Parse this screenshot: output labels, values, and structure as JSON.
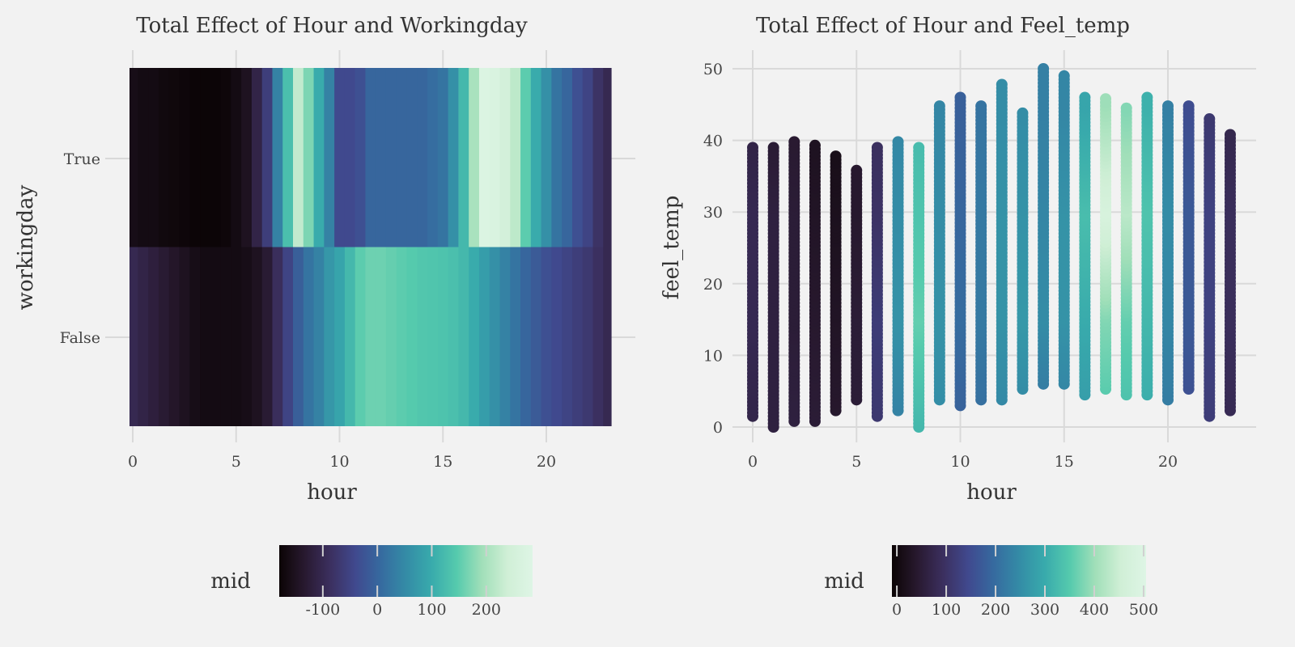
{
  "chart_data": [
    {
      "type": "heatmap",
      "title": "Total Effect of Hour and Workingday",
      "xlabel": "hour",
      "ylabel": "workingday",
      "xticks": [
        0,
        5,
        10,
        15,
        20
      ],
      "yticks": [
        "True",
        "False"
      ],
      "xlim": [
        -0.15,
        23.15
      ],
      "colormap": "mako",
      "grid": true,
      "hours": [
        0,
        0.5,
        1,
        1.5,
        2,
        2.5,
        3,
        3.5,
        4,
        4.5,
        5,
        5.5,
        6,
        6.5,
        7,
        7.5,
        8,
        8.5,
        9,
        9.5,
        10,
        10.5,
        11,
        11.5,
        12,
        12.5,
        13,
        13.5,
        14,
        14.5,
        15,
        15.5,
        16,
        16.5,
        17,
        17.5,
        18,
        18.5,
        19,
        19.5,
        20,
        20.5,
        21,
        21.5,
        22,
        22.5,
        23
      ],
      "rows": [
        {
          "label": "True",
          "values": [
            -160,
            -165,
            -165,
            -170,
            -172,
            -175,
            -178,
            -178,
            -178,
            -175,
            -165,
            -150,
            -110,
            -60,
            40,
            130,
            225,
            170,
            100,
            40,
            -40,
            -40,
            -30,
            0,
            0,
            0,
            0,
            0,
            0,
            10,
            20,
            60,
            120,
            200,
            275,
            270,
            250,
            220,
            150,
            100,
            60,
            20,
            0,
            -30,
            -50,
            -80,
            -100
          ]
        },
        {
          "label": "False",
          "values": [
            -100,
            -110,
            -120,
            -130,
            -140,
            -150,
            -160,
            -165,
            -165,
            -165,
            -165,
            -160,
            -150,
            -130,
            -90,
            -50,
            -10,
            20,
            40,
            70,
            90,
            120,
            150,
            160,
            160,
            155,
            150,
            145,
            140,
            138,
            135,
            130,
            120,
            100,
            80,
            60,
            40,
            20,
            0,
            -15,
            -30,
            -40,
            -50,
            -60,
            -70,
            -85,
            -100
          ]
        }
      ],
      "colorbar": {
        "label": "mid",
        "range": [
          -180,
          285
        ],
        "ticks": [
          -100,
          0,
          100,
          200
        ]
      }
    },
    {
      "type": "scatter",
      "title": "Total Effect of Hour and Feel_temp",
      "xlabel": "hour",
      "ylabel": "feel_temp",
      "xticks": [
        0,
        5,
        10,
        15,
        20
      ],
      "yticks": [
        0,
        10,
        20,
        30,
        40,
        50
      ],
      "xlim": [
        -1,
        24
      ],
      "ylim": [
        -2.5,
        52.5
      ],
      "colormap": "mako",
      "grid": true,
      "mid_sample_temps": [
        0,
        15,
        30,
        45
      ],
      "columns": [
        {
          "hour": 0,
          "min": 1.5,
          "max": 39.4,
          "mid": [
            70,
            80,
            80,
            60
          ]
        },
        {
          "hour": 1,
          "min": 0,
          "max": 39.4,
          "mid": [
            60,
            60,
            60,
            40
          ]
        },
        {
          "hour": 2,
          "min": 0.8,
          "max": 40.2,
          "mid": [
            60,
            50,
            50,
            40
          ]
        },
        {
          "hour": 3,
          "min": 0.8,
          "max": 39.4,
          "mid": [
            50,
            40,
            30,
            20
          ]
        },
        {
          "hour": 4,
          "min": 2.3,
          "max": 38,
          "mid": [
            40,
            30,
            20,
            10
          ]
        },
        {
          "hour": 5,
          "min": 3.8,
          "max": 35.8,
          "mid": [
            50,
            50,
            40,
            40
          ]
        },
        {
          "hour": 6,
          "min": 1.5,
          "max": 39.4,
          "mid": [
            110,
            120,
            100,
            90
          ]
        },
        {
          "hour": 7,
          "min": 2.3,
          "max": 40.2,
          "mid": [
            230,
            260,
            250,
            240
          ]
        },
        {
          "hour": 8,
          "min": 0,
          "max": 39.4,
          "mid": [
            320,
            360,
            340,
            320
          ]
        },
        {
          "hour": 9,
          "min": 3.8,
          "max": 44.8,
          "mid": [
            250,
            260,
            250,
            240
          ]
        },
        {
          "hour": 10,
          "min": 3,
          "max": 46.2,
          "mid": [
            180,
            200,
            190,
            180
          ]
        },
        {
          "hour": 11,
          "min": 3.8,
          "max": 44.8,
          "mid": [
            200,
            220,
            220,
            210
          ]
        },
        {
          "hour": 12,
          "min": 3.8,
          "max": 47.8,
          "mid": [
            240,
            260,
            260,
            250
          ]
        },
        {
          "hour": 13,
          "min": 5.3,
          "max": 44,
          "mid": [
            240,
            270,
            260,
            250
          ]
        },
        {
          "hour": 14,
          "min": 6,
          "max": 50,
          "mid": [
            210,
            250,
            240,
            230
          ]
        },
        {
          "hour": 15,
          "min": 6,
          "max": 49.2,
          "mid": [
            230,
            260,
            260,
            240
          ]
        },
        {
          "hour": 16,
          "min": 4.5,
          "max": 46.2,
          "mid": [
            270,
            300,
            330,
            290
          ]
        },
        {
          "hour": 17,
          "min": 5.3,
          "max": 46.2,
          "mid": [
            340,
            380,
            480,
            400
          ]
        },
        {
          "hour": 18,
          "min": 4.5,
          "max": 44.8,
          "mid": [
            330,
            360,
            430,
            380
          ]
        },
        {
          "hour": 19,
          "min": 4.5,
          "max": 46.2,
          "mid": [
            300,
            320,
            340,
            310
          ]
        },
        {
          "hour": 20,
          "min": 3.8,
          "max": 44.8,
          "mid": [
            220,
            240,
            250,
            230
          ]
        },
        {
          "hour": 21,
          "min": 5.3,
          "max": 44.8,
          "mid": [
            150,
            170,
            170,
            150
          ]
        },
        {
          "hour": 22,
          "min": 1.5,
          "max": 43.2,
          "mid": [
            120,
            130,
            130,
            110
          ]
        },
        {
          "hour": 23,
          "min": 2.3,
          "max": 41,
          "mid": [
            80,
            90,
            90,
            70
          ]
        }
      ],
      "colorbar": {
        "label": "mid",
        "range": [
          -10,
          505
        ],
        "ticks": [
          0,
          100,
          200,
          300,
          400,
          500
        ]
      }
    }
  ]
}
